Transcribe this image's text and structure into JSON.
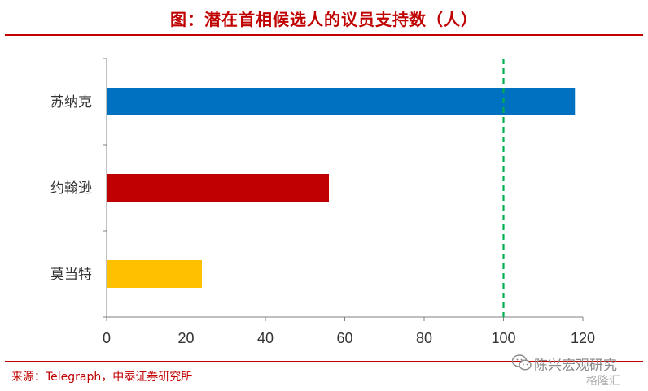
{
  "header": {
    "title": "图：潜在首相候选人的议员支持数（人）"
  },
  "footer": {
    "source": "来源：Telegraph，中泰证券研究所"
  },
  "watermark": {
    "channel": "陈兴宏观研究",
    "logo": "格隆汇",
    "icon": "wechat-icon"
  },
  "colors": {
    "accent": "#c00000",
    "threshold_line": "#00b050"
  },
  "chart_data": {
    "type": "bar",
    "orientation": "horizontal",
    "title": "图：潜在首相候选人的议员支持数（人）",
    "categories": [
      "苏纳克",
      "约翰逊",
      "莫当特"
    ],
    "values": [
      118,
      56,
      24
    ],
    "colors": [
      "#0070c0",
      "#c00000",
      "#ffc000"
    ],
    "xlim": [
      0,
      120
    ],
    "xticks": [
      0,
      20,
      40,
      60,
      80,
      100,
      120
    ],
    "xlabel": "",
    "ylabel": "",
    "reference_line": {
      "x": 100,
      "style": "dashed",
      "color": "#00b050"
    },
    "grid": false,
    "legend": "none"
  }
}
